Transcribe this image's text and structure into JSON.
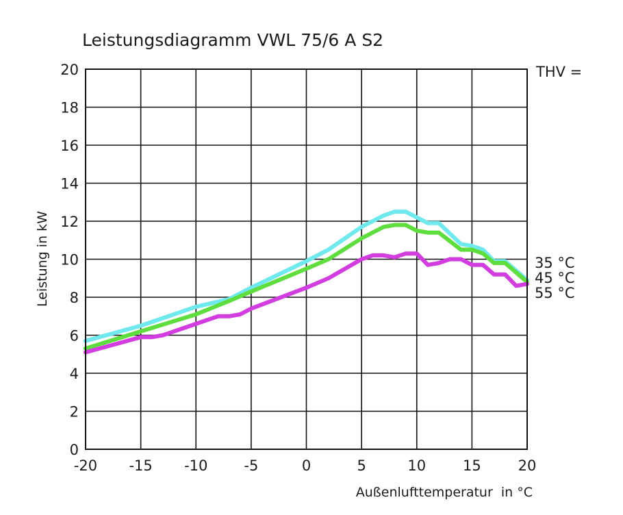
{
  "chart_data": {
    "type": "line",
    "title": "Leistungsdiagramm VWL 75/6 A S2",
    "xlabel": "Außenlufttemperatur  in °C",
    "ylabel": "Leistung in kW",
    "xlim": [
      -20,
      20
    ],
    "ylim": [
      0,
      20
    ],
    "xticks": [
      -20,
      -15,
      -10,
      -5,
      0,
      5,
      10,
      15,
      20
    ],
    "yticks": [
      0,
      2,
      4,
      6,
      8,
      10,
      12,
      14,
      16,
      18,
      20
    ],
    "grid": true,
    "legend_title": "THV =",
    "legend_placement": "right",
    "series": [
      {
        "name": "35 °C",
        "color": "#6fe8ee",
        "x": [
          -20,
          -15,
          -10,
          -7,
          -5,
          0,
          2,
          5,
          7,
          8,
          9,
          10,
          11,
          12,
          14,
          15,
          16,
          17,
          18,
          20
        ],
        "y": [
          5.7,
          6.5,
          7.5,
          7.9,
          8.5,
          9.9,
          10.5,
          11.7,
          12.3,
          12.5,
          12.5,
          12.2,
          11.9,
          11.9,
          10.8,
          10.7,
          10.5,
          9.9,
          9.9,
          8.9
        ]
      },
      {
        "name": "45 °C",
        "color": "#5fdc3e",
        "x": [
          -20,
          -15,
          -10,
          -7,
          -5,
          0,
          2,
          5,
          7,
          8,
          9,
          10,
          11,
          12,
          14,
          15,
          16,
          17,
          18,
          20
        ],
        "y": [
          5.3,
          6.2,
          7.1,
          7.8,
          8.3,
          9.5,
          10.0,
          11.1,
          11.7,
          11.8,
          11.8,
          11.5,
          11.4,
          11.4,
          10.5,
          10.5,
          10.3,
          9.8,
          9.8,
          8.8
        ]
      },
      {
        "name": "55 °C",
        "color": "#d23de0",
        "x": [
          -20,
          -15,
          -14,
          -13,
          -10,
          -8,
          -7,
          -6,
          -5,
          0,
          2,
          5,
          6,
          7,
          8,
          9,
          10,
          11,
          12,
          13,
          14,
          15,
          16,
          17,
          18,
          19,
          20
        ],
        "y": [
          5.1,
          5.9,
          5.9,
          6.0,
          6.6,
          7.0,
          7.0,
          7.1,
          7.4,
          8.5,
          9.0,
          10.0,
          10.2,
          10.2,
          10.1,
          10.3,
          10.3,
          9.7,
          9.8,
          10.0,
          10.0,
          9.7,
          9.7,
          9.2,
          9.2,
          8.6,
          8.7
        ]
      }
    ]
  }
}
